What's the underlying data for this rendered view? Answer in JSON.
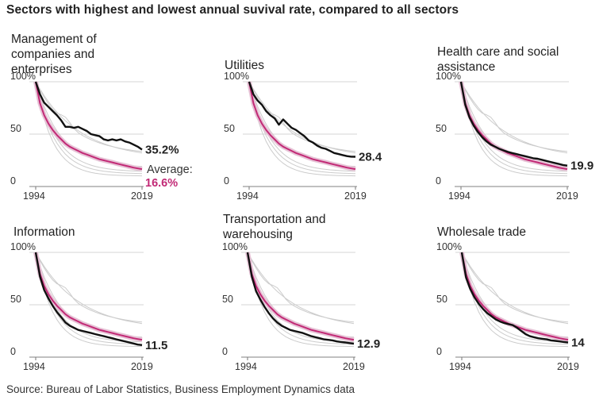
{
  "title": "Sectors with highest and lowest annual suvival rate, compared to all sectors",
  "source": "Source: Bureau of Labor Statistics, Business Employment Dynamics data",
  "colors": {
    "highlight": "#111111",
    "average": "#c22a76",
    "other_sectors": "#cccccc",
    "gridline": "#d6d6d6"
  },
  "chart_data": [
    {
      "type": "line",
      "title": "Management of companies and enterprises",
      "x_ticks": [
        "1994",
        "2019"
      ],
      "y_ticks": [
        "100%",
        "50",
        "0"
      ],
      "ylim": [
        0,
        100
      ],
      "xlim": [
        1994,
        2019
      ],
      "x": [
        1994,
        1995,
        1996,
        1997,
        1998,
        1999,
        2000,
        2001,
        2002,
        2003,
        2004,
        2005,
        2006,
        2007,
        2008,
        2009,
        2010,
        2011,
        2012,
        2013,
        2014,
        2015,
        2016,
        2017,
        2018,
        2019
      ],
      "series": [
        {
          "role": "sector",
          "values": [
            100,
            88,
            80,
            76,
            72,
            68,
            63,
            57,
            57,
            56,
            57,
            55,
            53,
            50,
            49,
            48,
            45,
            44,
            45,
            44,
            45,
            43,
            42,
            40,
            38,
            35.2
          ]
        },
        {
          "role": "average",
          "values": [
            100,
            79.5,
            68,
            60,
            54,
            49,
            45,
            41,
            38,
            36,
            34,
            32,
            30.5,
            29,
            27.5,
            26,
            25,
            24,
            23,
            22,
            21,
            20,
            19,
            18,
            17.3,
            16.6
          ]
        }
      ],
      "end_label": "35.2%",
      "average_label": "Average:",
      "average_value": "16.6%"
    },
    {
      "type": "line",
      "title": "Utilities",
      "x_ticks": [
        "1994",
        "2019"
      ],
      "y_ticks": [
        "100%",
        "50",
        "0"
      ],
      "ylim": [
        0,
        100
      ],
      "xlim": [
        1994,
        2019
      ],
      "x": [
        1994,
        1995,
        1996,
        1997,
        1998,
        1999,
        2000,
        2001,
        2002,
        2003,
        2004,
        2005,
        2006,
        2007,
        2008,
        2009,
        2010,
        2011,
        2012,
        2013,
        2014,
        2015,
        2016,
        2017,
        2018,
        2019
      ],
      "series": [
        {
          "role": "sector",
          "values": [
            100,
            88,
            82,
            78,
            72,
            68,
            65,
            59,
            64,
            60,
            56,
            54,
            51,
            48,
            44,
            42,
            39,
            37,
            36,
            34,
            32,
            31,
            30,
            29,
            28.5,
            28.4
          ]
        },
        {
          "role": "average",
          "values": [
            100,
            79.5,
            68,
            60,
            54,
            49,
            45,
            41,
            38,
            36,
            34,
            32,
            30.5,
            29,
            27.5,
            26,
            25,
            24,
            23,
            22,
            21,
            20,
            19,
            18,
            17.3,
            16.6
          ]
        }
      ],
      "end_label": "28.4"
    },
    {
      "type": "line",
      "title": "Health care and social assistance",
      "x_ticks": [
        "1994",
        "2019"
      ],
      "y_ticks": [
        "100%",
        "50",
        "0"
      ],
      "ylim": [
        0,
        100
      ],
      "xlim": [
        1994,
        2019
      ],
      "x": [
        1994,
        1995,
        1996,
        1997,
        1998,
        1999,
        2000,
        2001,
        2002,
        2003,
        2004,
        2005,
        2006,
        2007,
        2008,
        2009,
        2010,
        2011,
        2012,
        2013,
        2014,
        2015,
        2016,
        2017,
        2018,
        2019
      ],
      "series": [
        {
          "role": "sector",
          "values": [
            100,
            78,
            66,
            58,
            52,
            47,
            43,
            40,
            38,
            36,
            34.5,
            33,
            32,
            31,
            30,
            29,
            28,
            27,
            26.5,
            25.5,
            24.5,
            23.5,
            22.5,
            21.5,
            20.5,
            19.9
          ]
        },
        {
          "role": "average",
          "values": [
            100,
            79.5,
            68,
            60,
            54,
            49,
            45,
            41,
            38,
            36,
            34,
            32,
            30.5,
            29,
            27.5,
            26,
            25,
            24,
            23,
            22,
            21,
            20,
            19,
            18,
            17.3,
            16.6
          ]
        }
      ],
      "end_label": "19.9"
    },
    {
      "type": "line",
      "title": "Information",
      "x_ticks": [
        "1994",
        "2019"
      ],
      "y_ticks": [
        "100%",
        "50",
        "0"
      ],
      "ylim": [
        0,
        100
      ],
      "xlim": [
        1994,
        2019
      ],
      "x": [
        1994,
        1995,
        1996,
        1997,
        1998,
        1999,
        2000,
        2001,
        2002,
        2003,
        2004,
        2005,
        2006,
        2007,
        2008,
        2009,
        2010,
        2011,
        2012,
        2013,
        2014,
        2015,
        2016,
        2017,
        2018,
        2019
      ],
      "series": [
        {
          "role": "sector",
          "values": [
            100,
            77,
            64,
            56,
            49,
            43,
            38,
            33,
            30,
            28,
            26,
            25,
            24,
            23,
            22,
            21,
            20,
            19,
            18,
            17,
            16,
            15,
            14,
            13,
            12,
            11.5
          ]
        },
        {
          "role": "average",
          "values": [
            100,
            79.5,
            68,
            60,
            54,
            49,
            45,
            41,
            38,
            36,
            34,
            32,
            30.5,
            29,
            27.5,
            26,
            25,
            24,
            23,
            22,
            21,
            20,
            19,
            18,
            17.3,
            16.6
          ]
        }
      ],
      "end_label": "11.5"
    },
    {
      "type": "line",
      "title": "Transportation and warehousing",
      "x_ticks": [
        "1994",
        "2019"
      ],
      "y_ticks": [
        "100%",
        "50",
        "0"
      ],
      "ylim": [
        0,
        100
      ],
      "xlim": [
        1994,
        2019
      ],
      "x": [
        1994,
        1995,
        1996,
        1997,
        1998,
        1999,
        2000,
        2001,
        2002,
        2003,
        2004,
        2005,
        2006,
        2007,
        2008,
        2009,
        2010,
        2011,
        2012,
        2013,
        2014,
        2015,
        2016,
        2017,
        2018,
        2019
      ],
      "series": [
        {
          "role": "sector",
          "values": [
            100,
            77,
            63,
            55,
            48,
            42,
            37,
            33,
            30,
            28,
            26,
            25,
            24,
            23,
            21.5,
            20,
            19,
            18,
            17,
            16.5,
            16,
            15,
            14.5,
            14,
            13.4,
            12.9
          ]
        },
        {
          "role": "average",
          "values": [
            100,
            79.5,
            68,
            60,
            54,
            49,
            45,
            41,
            38,
            36,
            34,
            32,
            30.5,
            29,
            27.5,
            26,
            25,
            24,
            23,
            22,
            21,
            20,
            19,
            18,
            17.3,
            16.6
          ]
        }
      ],
      "end_label": "12.9"
    },
    {
      "type": "line",
      "title": "Wholesale trade",
      "x_ticks": [
        "1994",
        "2019"
      ],
      "y_ticks": [
        "100%",
        "50",
        "0"
      ],
      "ylim": [
        0,
        100
      ],
      "xlim": [
        1994,
        2019
      ],
      "x": [
        1994,
        1995,
        1996,
        1997,
        1998,
        1999,
        2000,
        2001,
        2002,
        2003,
        2004,
        2005,
        2006,
        2007,
        2008,
        2009,
        2010,
        2011,
        2012,
        2013,
        2014,
        2015,
        2016,
        2017,
        2018,
        2019
      ],
      "series": [
        {
          "role": "sector",
          "values": [
            100,
            76,
            65,
            57,
            51,
            46,
            42,
            39,
            36,
            34,
            32.5,
            31.5,
            30.5,
            28,
            25,
            22,
            20,
            19,
            18,
            17.5,
            17,
            16,
            15.5,
            15,
            14.5,
            14
          ]
        },
        {
          "role": "average",
          "values": [
            100,
            79.5,
            68,
            60,
            54,
            49,
            45,
            41,
            38,
            36,
            34,
            32,
            30.5,
            29,
            27.5,
            26,
            25,
            24,
            23,
            22,
            21,
            20,
            19,
            18,
            17.3,
            16.6
          ]
        }
      ],
      "end_label": "14"
    }
  ]
}
